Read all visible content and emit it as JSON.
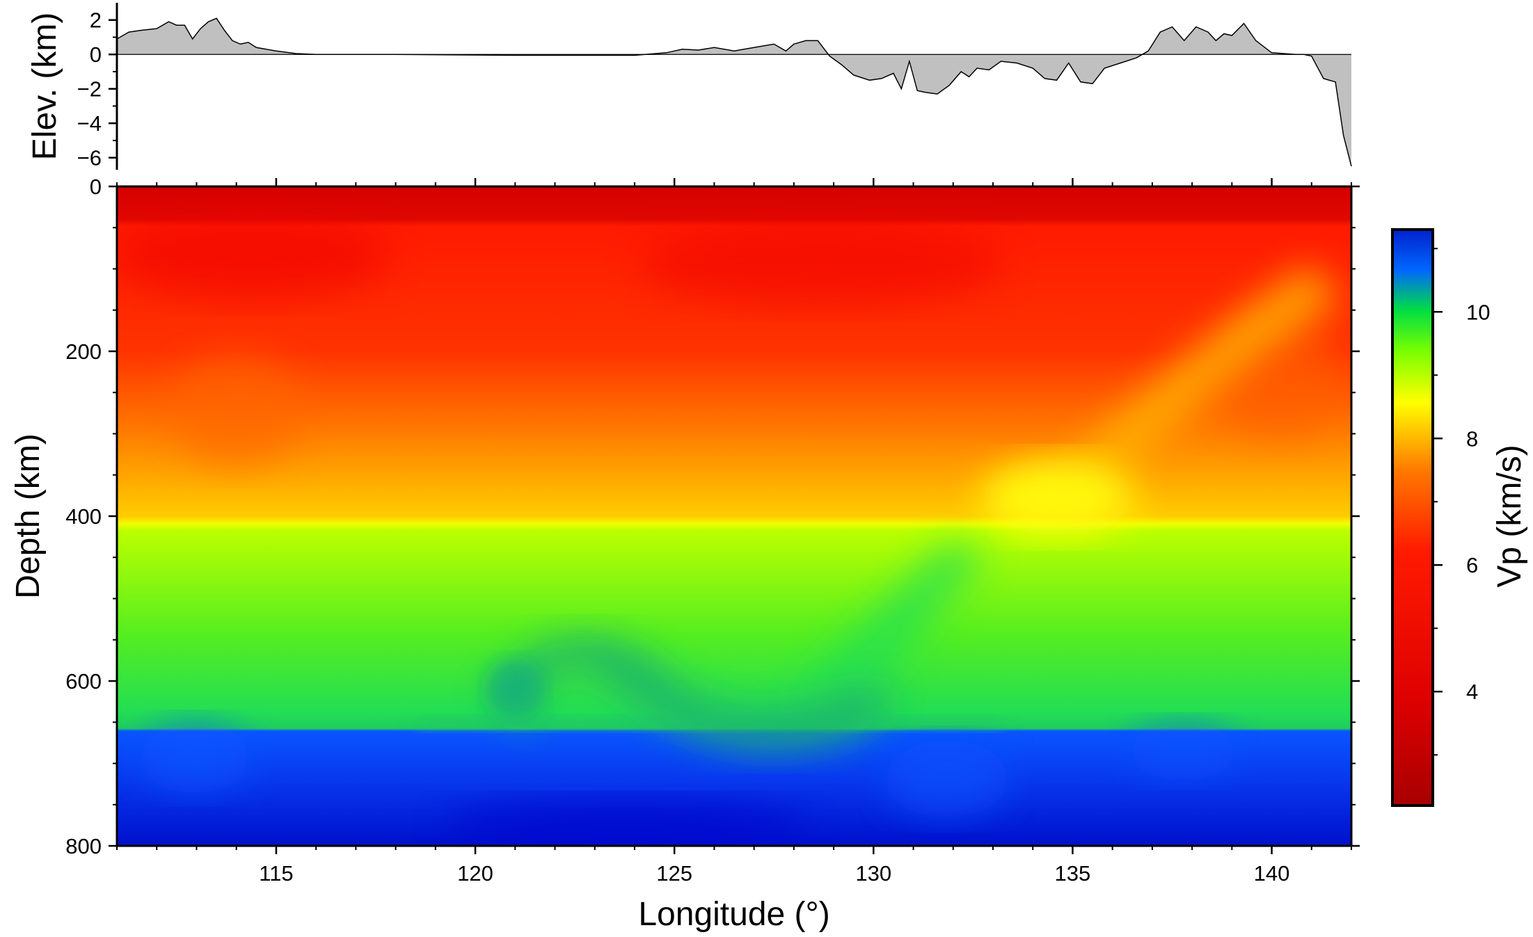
{
  "chart_data": [
    {
      "type": "area",
      "ylabel": "Elev. (km)",
      "xlim": [
        111,
        142
      ],
      "ylim": [
        -6.7,
        3
      ],
      "yticks": [
        2,
        0,
        -2,
        -4,
        -6
      ],
      "ytick_labels": [
        "2",
        "0",
        "−2",
        "−4",
        "−6"
      ],
      "fill_color": "#c0c0c0",
      "x": [
        111.0,
        111.3,
        111.6,
        112.0,
        112.3,
        112.5,
        112.7,
        112.9,
        113.1,
        113.3,
        113.5,
        113.7,
        113.9,
        114.1,
        114.3,
        114.5,
        115.0,
        115.5,
        116.0,
        118.0,
        121.0,
        124.0,
        124.8,
        125.2,
        125.6,
        126.0,
        126.5,
        127.0,
        127.5,
        127.8,
        128.0,
        128.3,
        128.6,
        128.9,
        129.2,
        129.5,
        129.9,
        130.2,
        130.5,
        130.7,
        130.9,
        131.1,
        131.3,
        131.6,
        131.9,
        132.2,
        132.4,
        132.6,
        132.9,
        133.2,
        133.6,
        134.0,
        134.3,
        134.6,
        134.9,
        135.2,
        135.5,
        135.8,
        136.2,
        136.6,
        136.9,
        137.2,
        137.5,
        137.8,
        138.1,
        138.4,
        138.6,
        138.8,
        139.0,
        139.3,
        139.6,
        140.0,
        140.3,
        140.6,
        140.8,
        141.0,
        141.3,
        141.6,
        141.8,
        142.0
      ],
      "y": [
        0.9,
        1.3,
        1.4,
        1.5,
        1.9,
        1.7,
        1.7,
        0.9,
        1.5,
        1.9,
        2.1,
        1.4,
        0.8,
        0.6,
        0.7,
        0.4,
        0.2,
        0.05,
        0.0,
        0.0,
        -0.05,
        -0.05,
        0.1,
        0.3,
        0.25,
        0.4,
        0.2,
        0.4,
        0.6,
        0.2,
        0.6,
        0.8,
        0.8,
        -0.1,
        -0.6,
        -1.2,
        -1.5,
        -1.4,
        -1.1,
        -2.0,
        -0.4,
        -2.1,
        -2.2,
        -2.3,
        -1.8,
        -1.0,
        -1.3,
        -0.8,
        -0.9,
        -0.4,
        -0.5,
        -0.8,
        -1.4,
        -1.5,
        -0.5,
        -1.6,
        -1.7,
        -0.8,
        -0.5,
        -0.2,
        0.2,
        1.3,
        1.6,
        0.8,
        1.6,
        1.3,
        0.8,
        1.2,
        1.1,
        1.8,
        0.8,
        0.1,
        0.05,
        0.0,
        0.0,
        -0.1,
        -1.4,
        -1.6,
        -4.7,
        -6.5
      ]
    },
    {
      "type": "heatmap",
      "xlabel": "Longitude (°)",
      "ylabel": "Depth (km)",
      "xlim": [
        111,
        142
      ],
      "ylim": [
        0,
        800
      ],
      "y_inverted": true,
      "xticks": [
        115,
        120,
        125,
        130,
        135,
        140
      ],
      "yticks": [
        0,
        200,
        400,
        600,
        800
      ],
      "colorbar": {
        "label": "Vp (km/s)",
        "range": [
          2.2,
          11.3
        ],
        "ticks": [
          4,
          6,
          8,
          10
        ],
        "colormap": "seis",
        "colors": [
          "#a80000",
          "#ff0000",
          "#ff7700",
          "#ffff00",
          "#66ff00",
          "#00dd44",
          "#0044ff",
          "#0000cc"
        ]
      },
      "layers": [
        {
          "depth_range": [
            0,
            45
          ],
          "vp": 6.2
        },
        {
          "depth_range": [
            45,
            200
          ],
          "vp": 7.6
        },
        {
          "depth_range": [
            200,
            410
          ],
          "vp": 8.6
        },
        {
          "depth_range": [
            410,
            660
          ],
          "vp": 10.0
        },
        {
          "depth_range": [
            660,
            800
          ],
          "vp": 11.0
        }
      ],
      "features": [
        {
          "description": "high-velocity slab dipping westward",
          "from": [
            141,
            120
          ],
          "to": [
            134,
            400
          ],
          "vp": 9.0
        },
        {
          "description": "stagnant slab in mantle transition zone",
          "x_range": [
            119.5,
            133
          ],
          "depth_range": [
            520,
            650
          ],
          "vp": 10.6
        }
      ]
    }
  ]
}
